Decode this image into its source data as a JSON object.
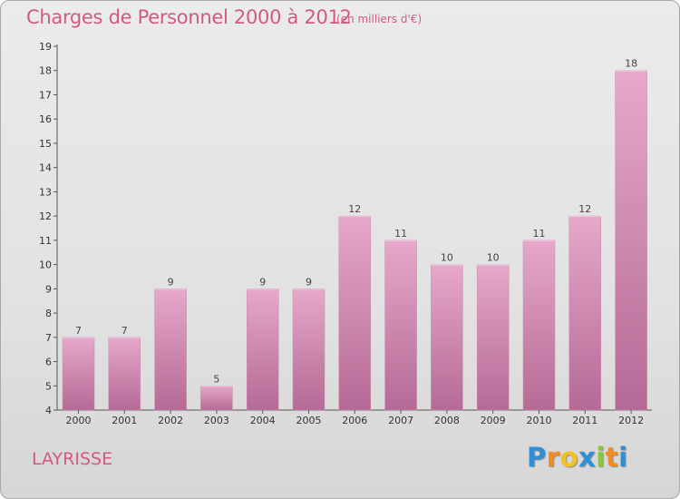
{
  "chart_data": {
    "type": "bar",
    "title": "Charges de Personnel 2000 à 2012",
    "subtitle": "(en milliers d'€)",
    "categories": [
      "2000",
      "2001",
      "2002",
      "2003",
      "2004",
      "2005",
      "2006",
      "2007",
      "2008",
      "2009",
      "2010",
      "2011",
      "2012"
    ],
    "values": [
      7,
      7,
      9,
      5,
      9,
      9,
      12,
      11,
      10,
      10,
      11,
      12,
      18
    ],
    "ylim": [
      4,
      19
    ],
    "yticks": [
      4,
      5,
      6,
      7,
      8,
      9,
      10,
      11,
      12,
      13,
      14,
      15,
      16,
      17,
      18,
      19
    ],
    "grid": false,
    "bar_color": "#d486b0"
  },
  "location": "LAYRISSE",
  "logo": {
    "letters": [
      "P",
      "r",
      "o",
      "x",
      "i",
      "t",
      "i"
    ],
    "colors": [
      "#2f8fd6",
      "#f28c1e",
      "#f2c21e",
      "#2f8fd6",
      "#8cc63f",
      "#f28c1e",
      "#2f8fd6"
    ]
  }
}
